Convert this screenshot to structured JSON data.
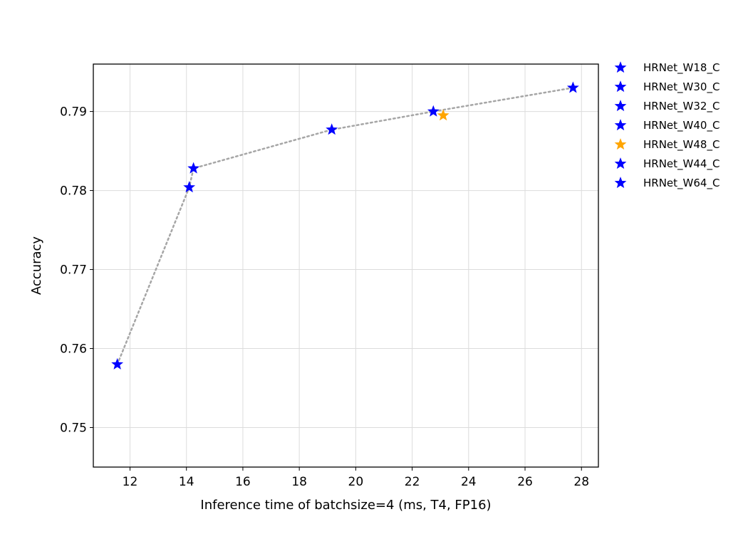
{
  "chart_data": {
    "type": "scatter",
    "title": "",
    "xlabel": "Inference time of batchsize=4 (ms, T4, FP16)",
    "ylabel": "Accuracy",
    "xlim": [
      10.7,
      28.6
    ],
    "ylim": [
      0.745,
      0.796
    ],
    "xticks": [
      12,
      14,
      16,
      18,
      20,
      22,
      24,
      26,
      28
    ],
    "yticks": [
      0.75,
      0.76,
      0.77,
      0.78,
      0.79
    ],
    "ytick_labels": [
      "0.75",
      "0.76",
      "0.77",
      "0.78",
      "0.79"
    ],
    "grid": true,
    "legend_position": "outside-right",
    "marker": "star",
    "trend_line": {
      "style": "dotted",
      "color": "#a6a6a6",
      "order": [
        "HRNet_W18_C",
        "HRNet_W30_C",
        "HRNet_W32_C",
        "HRNet_W40_C",
        "HRNet_W44_C",
        "HRNet_W64_C"
      ]
    },
    "series": [
      {
        "name": "HRNet_W18_C",
        "x": 11.55,
        "y": 0.758,
        "color": "#0000ff"
      },
      {
        "name": "HRNet_W30_C",
        "x": 14.1,
        "y": 0.7804,
        "color": "#0000ff"
      },
      {
        "name": "HRNet_W32_C",
        "x": 14.25,
        "y": 0.7828,
        "color": "#0000ff"
      },
      {
        "name": "HRNet_W40_C",
        "x": 19.15,
        "y": 0.7877,
        "color": "#0000ff"
      },
      {
        "name": "HRNet_W48_C",
        "x": 23.1,
        "y": 0.7895,
        "color": "#ffa500"
      },
      {
        "name": "HRNet_W44_C",
        "x": 22.75,
        "y": 0.79,
        "color": "#0000ff"
      },
      {
        "name": "HRNet_W64_C",
        "x": 27.7,
        "y": 0.793,
        "color": "#0000ff"
      }
    ]
  }
}
